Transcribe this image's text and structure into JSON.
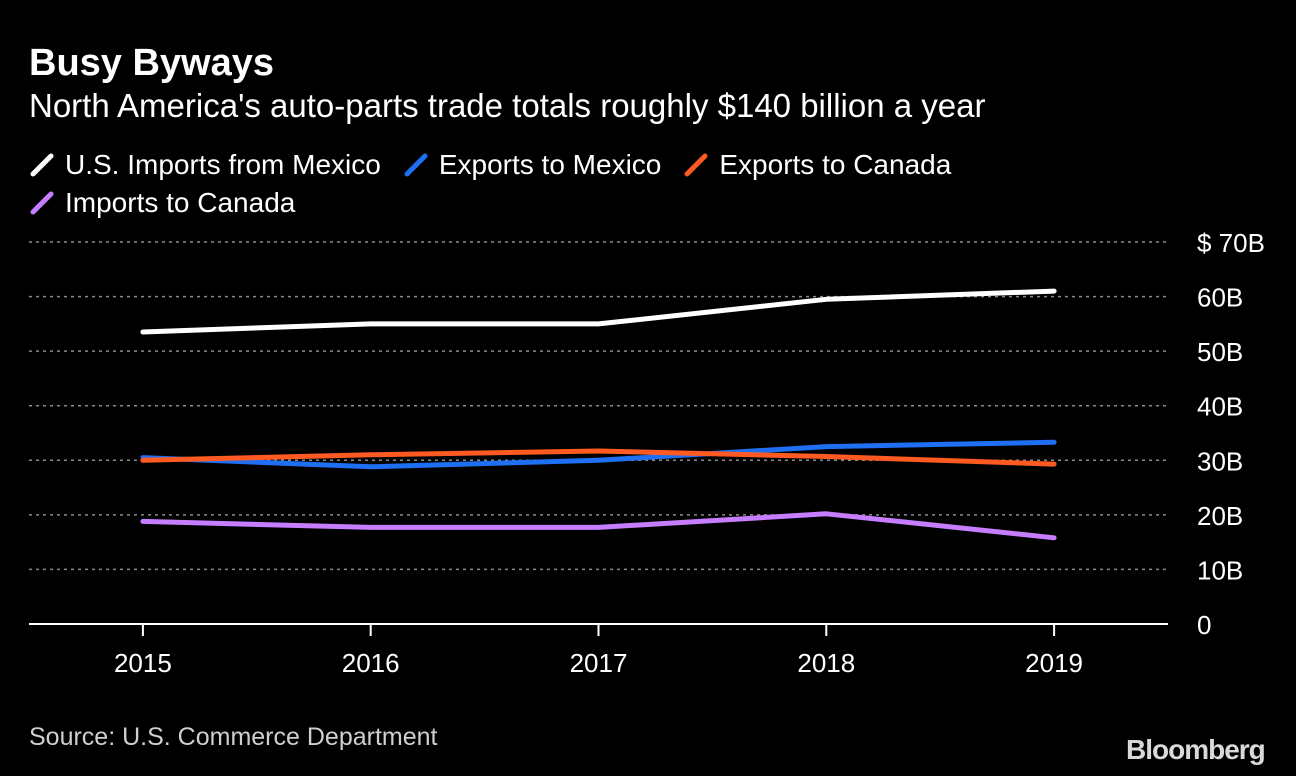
{
  "header": {
    "title": "Busy Byways",
    "subtitle": "North America's auto-parts trade totals roughly $140 billion a year"
  },
  "footer": {
    "source": "Source: U.S. Commerce Department",
    "brand": "Bloomberg"
  },
  "chart_data": {
    "type": "line",
    "title": "Busy Byways",
    "subtitle": "North America's auto-parts trade totals roughly $140 billion a year",
    "xlabel": "",
    "ylabel": "",
    "x": [
      "2015",
      "2016",
      "2017",
      "2018",
      "2019"
    ],
    "xlim": [
      2014.5,
      2019.5
    ],
    "ylim": [
      0,
      70
    ],
    "yticks": [
      0,
      10,
      20,
      30,
      40,
      50,
      60,
      70
    ],
    "ytick_labels": [
      "0",
      "10B",
      "20B",
      "30B",
      "40B",
      "50B",
      "60B",
      "$ 70B"
    ],
    "grid": "horizontal dotted",
    "legend_position": "top-left",
    "series": [
      {
        "name": "U.S. Imports from Mexico",
        "color": "#ffffff",
        "values": [
          53.5,
          55.0,
          55.0,
          59.5,
          61.0
        ]
      },
      {
        "name": "Exports to Mexico",
        "color": "#1f6ff2",
        "values": [
          30.5,
          28.8,
          30.0,
          32.5,
          33.3
        ]
      },
      {
        "name": "Exports to Canada",
        "color": "#ff5a22",
        "values": [
          30.0,
          31.0,
          31.7,
          30.7,
          29.3
        ]
      },
      {
        "name": "Imports to Canada",
        "color": "#c77dff",
        "values": [
          18.8,
          17.7,
          17.7,
          20.2,
          15.8
        ]
      }
    ]
  }
}
